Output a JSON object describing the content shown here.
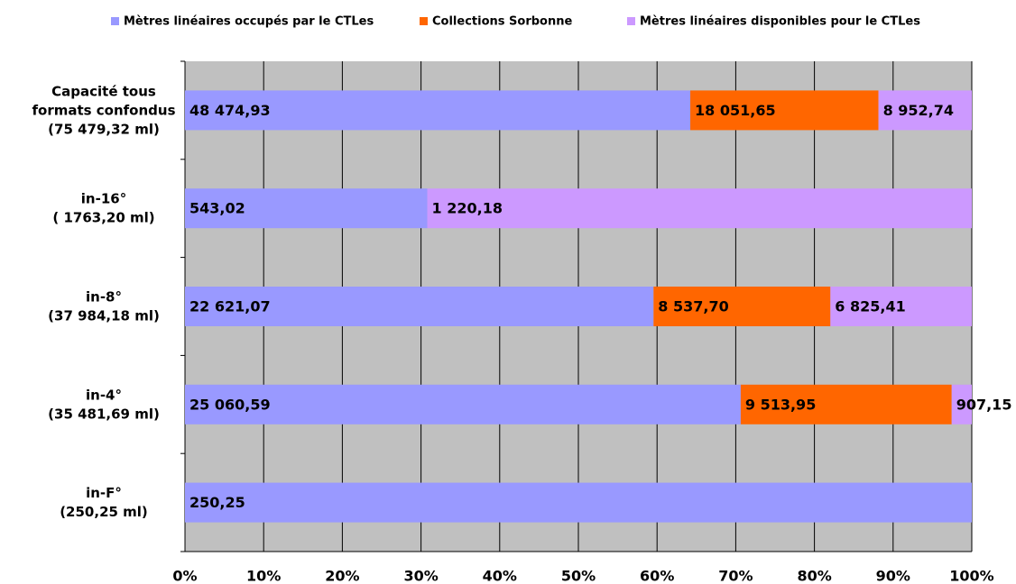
{
  "chart_data": {
    "type": "bar",
    "orientation": "horizontal",
    "stacked": "percent",
    "categories": [
      [
        "Capacité tous",
        "formats confondus",
        "(75 479,32 ml)"
      ],
      [
        "in-16°",
        "( 1763,20 ml)"
      ],
      [
        "in-8°",
        "(37 984,18 ml)"
      ],
      [
        "in-4°",
        "(35 481,69 ml)"
      ],
      [
        "in-F°",
        "(250,25 ml)"
      ]
    ],
    "series": [
      {
        "name": "Mètres linéaires occupés par le CTLes",
        "color": "#9999ff",
        "values": [
          48474.93,
          543.02,
          22621.07,
          25060.59,
          250.25
        ],
        "value_labels": [
          "48 474,93",
          "543,02",
          "22 621,07",
          "25 060,59",
          "250,25"
        ]
      },
      {
        "name": "Collections Sorbonne",
        "color": "#ff6600",
        "values": [
          18051.65,
          null,
          8537.7,
          9513.95,
          null
        ],
        "value_labels": [
          "18 051,65",
          null,
          "8 537,70",
          "9 513,95",
          null
        ]
      },
      {
        "name": "Mètres linéaires disponibles pour le CTLes",
        "color": "#cc99ff",
        "values": [
          8952.74,
          1220.18,
          6825.41,
          907.15,
          null
        ],
        "value_labels": [
          "8 952,74",
          "1 220,18",
          "6 825,41",
          "907,15",
          null
        ]
      }
    ],
    "xlim": [
      0,
      100
    ],
    "xticks": [
      {
        "value": 0,
        "label": "0%"
      },
      {
        "value": 10,
        "label": "10%"
      },
      {
        "value": 20,
        "label": "20%"
      },
      {
        "value": 30,
        "label": "30%"
      },
      {
        "value": 40,
        "label": "40%"
      },
      {
        "value": 50,
        "label": "50%"
      },
      {
        "value": 60,
        "label": "60%"
      },
      {
        "value": 70,
        "label": "70%"
      },
      {
        "value": 80,
        "label": "80%"
      },
      {
        "value": 90,
        "label": "90%"
      },
      {
        "value": 100,
        "label": "100%"
      }
    ],
    "grid": true,
    "legend": "top",
    "background": "#c0c0c0"
  }
}
